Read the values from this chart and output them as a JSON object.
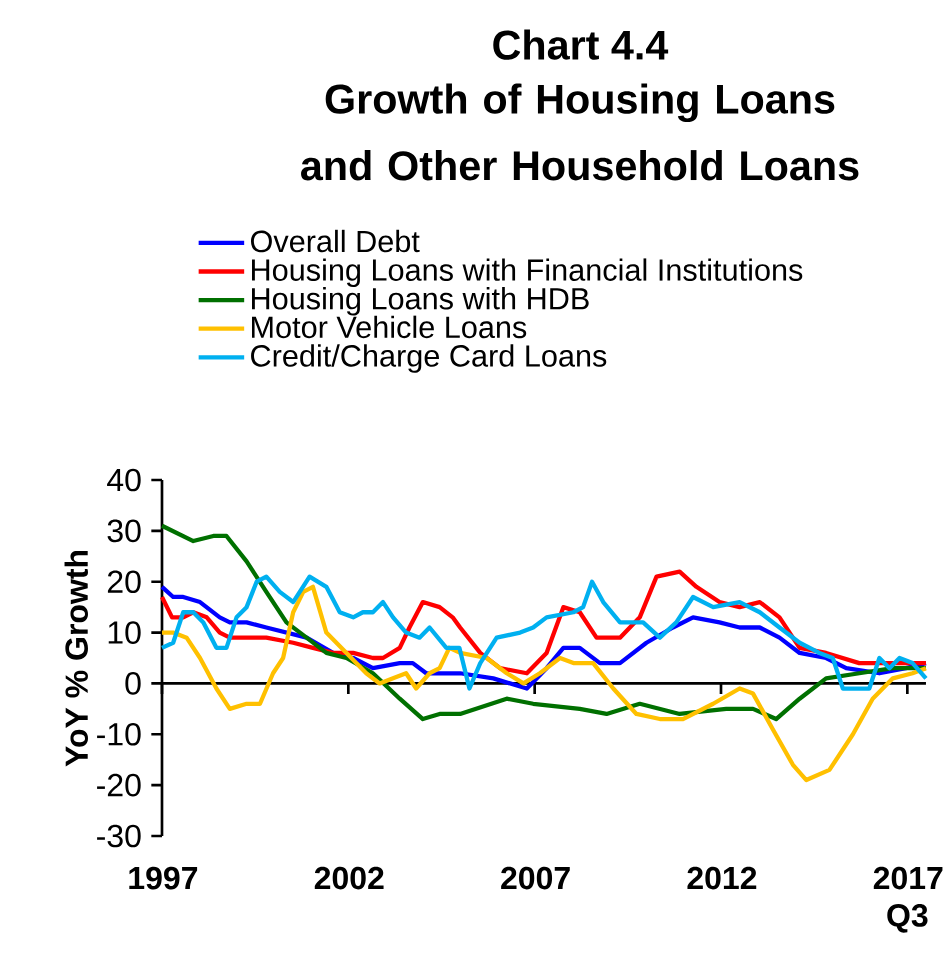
{
  "chart_data": {
    "type": "line",
    "title": "Chart 4.4",
    "subtitle": "Growth of Housing Loans and Other Household Loans",
    "ylabel": "YoY % Growth",
    "xlim": [
      1997,
      2017.5
    ],
    "ylim": [
      -30,
      40
    ],
    "xticks": [
      1997,
      2002,
      2007,
      2012,
      {
        "value": 2017,
        "label": "2017 Q3"
      }
    ],
    "yticks": [
      -30,
      -20,
      -10,
      0,
      10,
      20,
      30,
      40
    ],
    "legend": "top",
    "marker": "none",
    "line_style": "solid",
    "series": [
      {
        "name": "Overall Debt",
        "color": "#0000ff",
        "x": [
          1997,
          1997.3,
          1997.57,
          1998.02,
          1998.55,
          1998.82,
          1999.27,
          1999.8,
          2000.34,
          2000.88,
          2001.59,
          2002.13,
          2002.66,
          2003.38,
          2003.73,
          2004.09,
          2004.8,
          2005.0,
          2005.89,
          2006.79,
          2007.32,
          2007.77,
          2008.21,
          2008.75,
          2009.29,
          2010,
          2010.71,
          2011.25,
          2011.96,
          2012.5,
          2013.04,
          2013.57,
          2014.11,
          2014.82,
          2015.36,
          2016.25,
          2016.96,
          2017.5
        ],
        "values": [
          19,
          17,
          17,
          16,
          13,
          12,
          12,
          11,
          10,
          9,
          6,
          5,
          3,
          4,
          4,
          2,
          2,
          2,
          1,
          -1,
          3,
          7,
          7,
          4,
          4,
          8,
          11,
          13,
          12,
          11,
          11,
          9,
          6,
          5,
          3,
          2,
          3,
          4
        ]
      },
      {
        "name": "Housing Loans with Financial Institutions",
        "color": "#ff0000",
        "x": [
          1997,
          1997.27,
          1997.57,
          1997.84,
          1998.2,
          1998.55,
          1998.82,
          1999.27,
          1999.8,
          2000.52,
          2001.05,
          2001.59,
          2002.13,
          2002.66,
          2002.93,
          2003.38,
          2003.64,
          2004,
          2004.45,
          2004.8,
          2005.0,
          2005.54,
          2006.07,
          2006.79,
          2007.32,
          2007.77,
          2008.21,
          2008.66,
          2009.29,
          2009.82,
          2010.27,
          2010.89,
          2011.34,
          2011.96,
          2012.5,
          2013.04,
          2013.57,
          2014.11,
          2014.82,
          2015.71,
          2016.61,
          2017.5
        ],
        "values": [
          17,
          13,
          13,
          14,
          13,
          10,
          9,
          9,
          9,
          8,
          7,
          6,
          6,
          5,
          5,
          7,
          11,
          16,
          15,
          13,
          11,
          6,
          3,
          2,
          6,
          15,
          14,
          9,
          9,
          13,
          21,
          22,
          19,
          16,
          15,
          16,
          13,
          7,
          6,
          4,
          4,
          4
        ]
      },
      {
        "name": "Housing Loans with HDB",
        "color": "#007000",
        "x": [
          1997,
          1997.84,
          1998.38,
          1998.73,
          1999.27,
          1999.8,
          2000.34,
          2000.88,
          2001.41,
          2001.95,
          2002.66,
          2003.38,
          2004,
          2004.45,
          2005.0,
          2006.25,
          2006.96,
          2008.21,
          2008.93,
          2009.82,
          2010.89,
          2012.14,
          2012.86,
          2013.48,
          2014.11,
          2014.82,
          2015.71,
          2016.61,
          2017.5
        ],
        "values": [
          31,
          28,
          29,
          29,
          24,
          18,
          12,
          9,
          6,
          5,
          2,
          -3,
          -7,
          -6,
          -6,
          -3,
          -4,
          -5,
          -6,
          -4,
          -6,
          -5,
          -5,
          -7,
          -3,
          1,
          2,
          3,
          3
        ]
      },
      {
        "name": "Motor Vehicle Loans",
        "color": "#ffc000",
        "x": [
          1997,
          1997.3,
          1997.66,
          1998.02,
          1998.46,
          1998.82,
          1999.27,
          1999.63,
          1999.98,
          2000.25,
          2000.52,
          2000.79,
          2001.05,
          2001.41,
          2001.95,
          2002.48,
          2002.84,
          2003.2,
          2003.55,
          2003.82,
          2004.18,
          2004.45,
          2004.71,
          2005.0,
          2005.71,
          2006.25,
          2006.7,
          2007.14,
          2007.68,
          2008.04,
          2008.57,
          2009.11,
          2009.73,
          2010.36,
          2010.98,
          2011.79,
          2012.5,
          2012.86,
          2013.39,
          2013.93,
          2014.29,
          2014.91,
          2015.54,
          2016.07,
          2016.61,
          2017.14,
          2017.5
        ],
        "values": [
          10,
          10,
          9,
          5,
          -1,
          -5,
          -4,
          -4,
          2,
          5,
          14,
          18,
          19,
          10,
          6,
          2,
          0,
          1,
          2,
          -1,
          2,
          3,
          7,
          6,
          5,
          2,
          0,
          2,
          5,
          4,
          4,
          -1,
          -6,
          -7,
          -7,
          -4,
          -1,
          -2,
          -9,
          -16,
          -19,
          -17,
          -10,
          -3,
          1,
          2,
          3
        ]
      },
      {
        "name": "Credit/Charge Card Loans",
        "color": "#00b0f0",
        "x": [
          1997,
          1997.3,
          1997.57,
          1997.84,
          1998.11,
          1998.46,
          1998.73,
          1999,
          1999.27,
          1999.54,
          1999.8,
          2000.16,
          2000.52,
          2000.96,
          2001.41,
          2001.77,
          2002.13,
          2002.39,
          2002.66,
          2002.93,
          2003.2,
          2003.55,
          2003.91,
          2004.18,
          2004.63,
          2004.98,
          2005.25,
          2005.54,
          2005.98,
          2006.61,
          2006.96,
          2007.32,
          2008.04,
          2008.3,
          2008.54,
          2008.84,
          2009.29,
          2009.91,
          2010.36,
          2010.8,
          2011.25,
          2011.79,
          2012.5,
          2013.04,
          2013.57,
          2014.11,
          2014.64,
          2015,
          2015.27,
          2015.63,
          2015.98,
          2016.25,
          2016.52,
          2016.79,
          2017.14,
          2017.5
        ],
        "values": [
          7,
          8,
          14,
          14,
          12,
          7,
          7,
          13,
          15,
          20,
          21,
          18,
          16,
          21,
          19,
          14,
          13,
          14,
          14,
          16,
          13,
          10,
          9,
          11,
          7,
          7,
          -1,
          4,
          9,
          10,
          11,
          13,
          14,
          15,
          20,
          16,
          12,
          12,
          9,
          12,
          17,
          15,
          16,
          14,
          11,
          8,
          6,
          5,
          -1,
          -1,
          -1,
          5,
          3,
          5,
          4,
          1
        ]
      }
    ]
  }
}
